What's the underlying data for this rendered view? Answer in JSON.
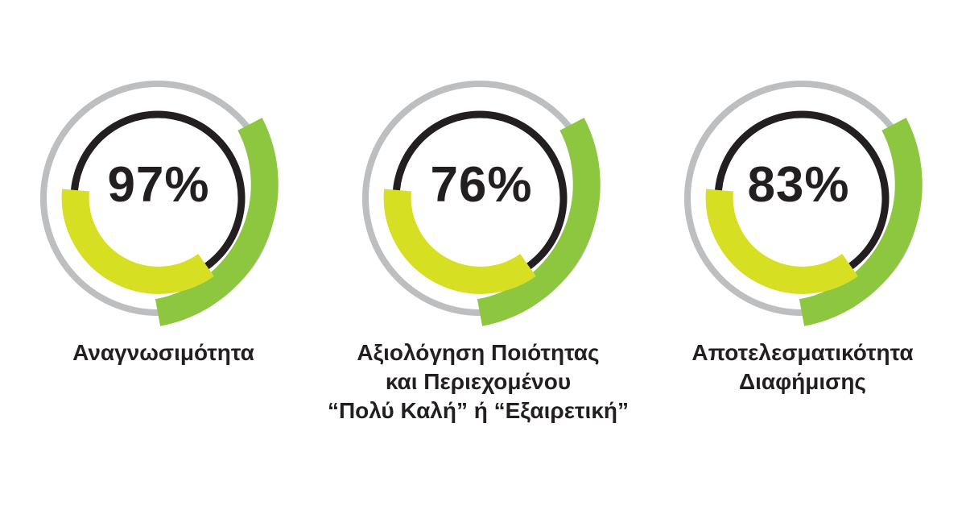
{
  "colors": {
    "outer_track": "#bcbec0",
    "outer_arc": "#8dc63f",
    "inner_ring": "#231f20",
    "inner_arc": "#d7df23",
    "text": "#231f20",
    "background": "#ffffff"
  },
  "stats": [
    {
      "percent_label": "97%",
      "value": 97,
      "label_lines": [
        "Αναγνωσιμότητα"
      ]
    },
    {
      "percent_label": "76%",
      "value": 76,
      "label_lines": [
        "Αξιολόγηση Ποιότητας",
        "και Περιεχομένου",
        "“Πολύ Καλή” ή “Εξαιρετική”"
      ]
    },
    {
      "percent_label": "83%",
      "value": 83,
      "label_lines": [
        "Αποτελεσματικότητα",
        "Διαφήμισης"
      ]
    }
  ]
}
